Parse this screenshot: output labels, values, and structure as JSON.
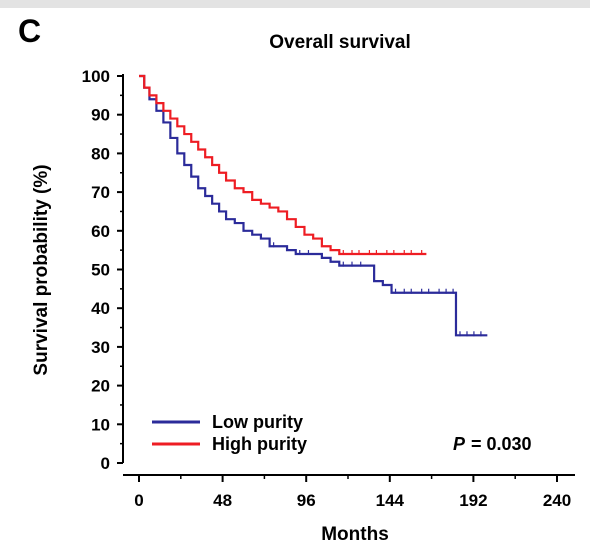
{
  "panel_label": "C",
  "chart_data": {
    "type": "line",
    "subtype": "kaplan-meier",
    "title": "Overall survival",
    "xlabel": "Months",
    "ylabel": "Survival probability (%)",
    "xlim": [
      0,
      240
    ],
    "ylim": [
      0,
      100
    ],
    "xticks": [
      0,
      48,
      96,
      144,
      192,
      240
    ],
    "yticks": [
      0,
      10,
      20,
      30,
      40,
      50,
      60,
      70,
      80,
      90,
      100
    ],
    "grid": false,
    "legend_position": "bottom-left",
    "annotation": {
      "label": "P",
      "value": "= 0.030"
    },
    "series": [
      {
        "name": "Low purity",
        "color": "#2b2b9a",
        "x": [
          0,
          3,
          6,
          10,
          14,
          18,
          22,
          26,
          30,
          34,
          38,
          42,
          46,
          50,
          55,
          60,
          65,
          70,
          75,
          80,
          85,
          90,
          95,
          100,
          105,
          110,
          115,
          120,
          125,
          130,
          135,
          140,
          145,
          150,
          160,
          170,
          182,
          182,
          190,
          200
        ],
        "y": [
          100,
          97,
          94,
          91,
          88,
          84,
          80,
          77,
          74,
          71,
          69,
          67,
          65,
          63,
          62,
          60,
          59,
          58,
          56,
          56,
          55,
          54,
          54,
          54,
          53,
          52,
          51,
          51,
          51,
          51,
          47,
          46,
          44,
          44,
          44,
          44,
          44,
          33,
          33,
          33
        ]
      },
      {
        "name": "High purity",
        "color": "#ee1d23",
        "x": [
          0,
          3,
          6,
          10,
          14,
          18,
          22,
          26,
          30,
          34,
          38,
          42,
          46,
          50,
          55,
          60,
          65,
          70,
          75,
          80,
          85,
          90,
          95,
          100,
          105,
          110,
          115,
          120,
          130,
          140,
          150,
          160,
          165
        ],
        "y": [
          100,
          97,
          95,
          93,
          91,
          89,
          87,
          85,
          83,
          81,
          79,
          77,
          75,
          73,
          71,
          70,
          68,
          67,
          66,
          65,
          63,
          61,
          59,
          58,
          56,
          55,
          54,
          54,
          54,
          54,
          54,
          54,
          54
        ]
      }
    ]
  }
}
